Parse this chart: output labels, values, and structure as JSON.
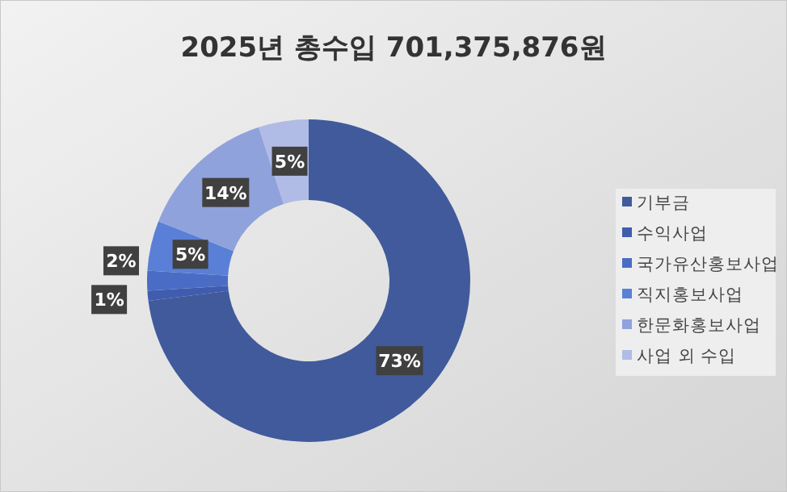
{
  "chart_data": {
    "type": "donut",
    "title": "2025년 총수입 701,375,876원",
    "categories": [
      "기부금",
      "수익사업",
      "국가유산홍보사업",
      "직지홍보사업",
      "한문화홍보사업",
      "사업 외 수입"
    ],
    "values": [
      73,
      1,
      2,
      5,
      14,
      5
    ],
    "colors": [
      "#415a9c",
      "#3f5cae",
      "#4a6cc4",
      "#5a7fd6",
      "#8fa2dc",
      "#b0bbe6"
    ],
    "value_labels": [
      "73%",
      "1%",
      "2%",
      "5%",
      "14%",
      "5%"
    ],
    "legend": "right"
  }
}
